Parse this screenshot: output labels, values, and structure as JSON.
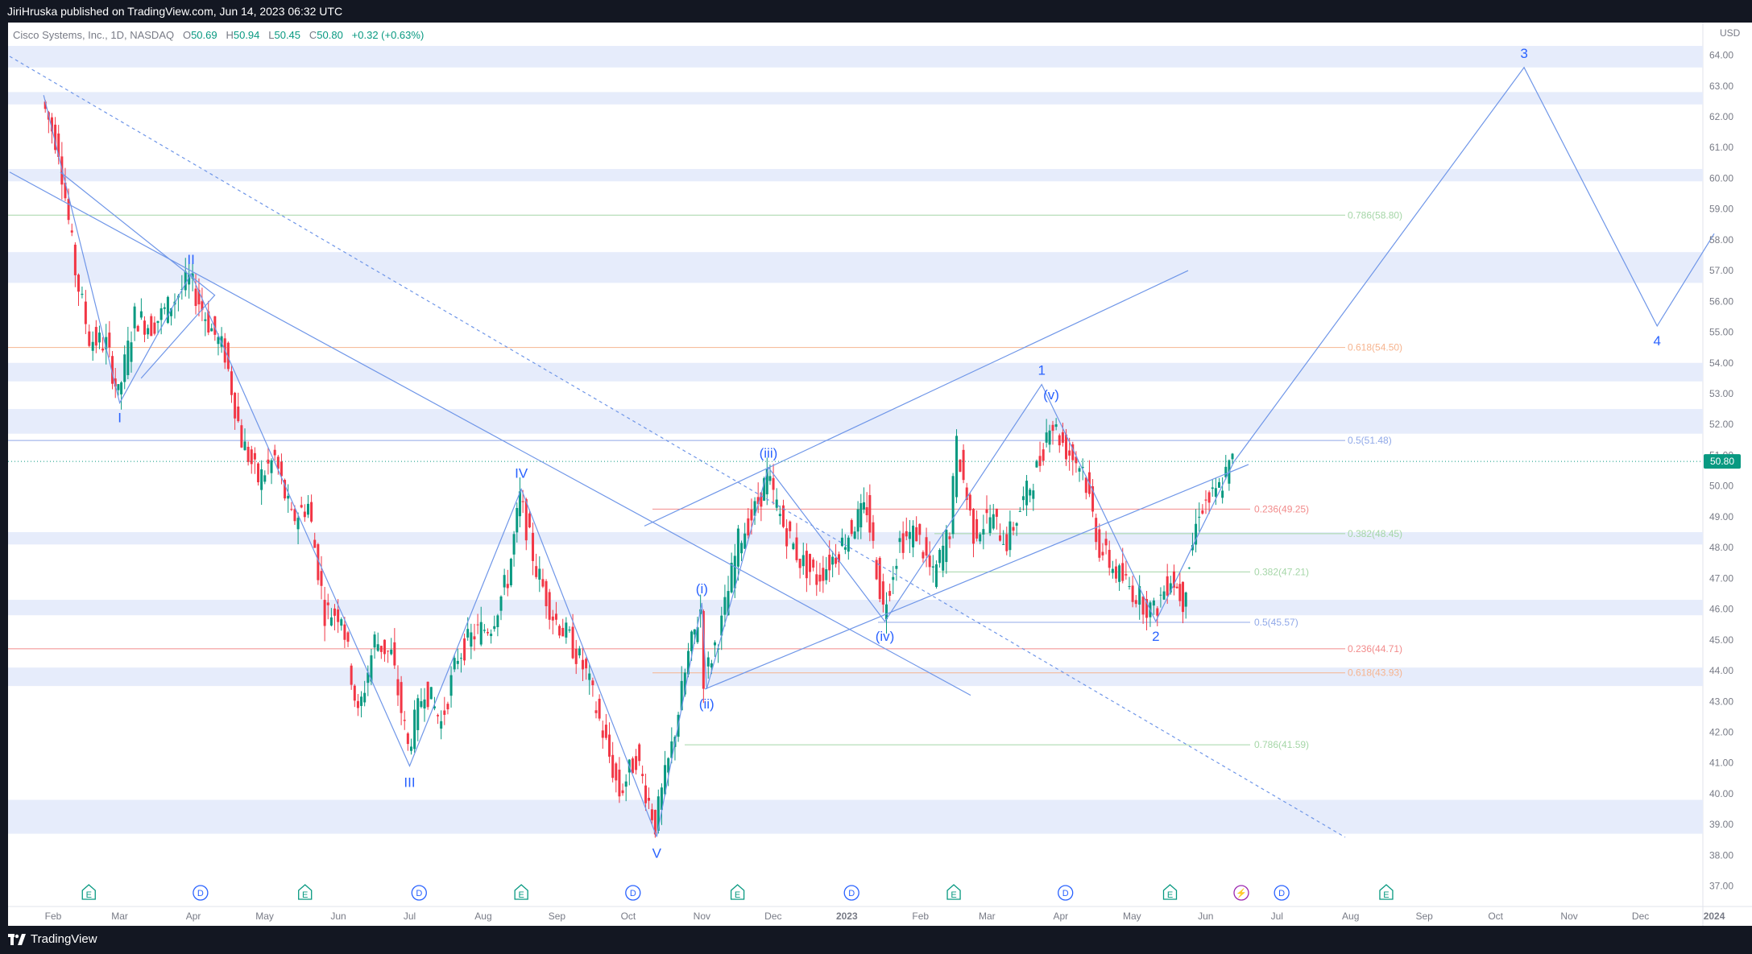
{
  "header": {
    "publisher_text": "JiriHruska published on TradingView.com, Jun 14, 2023 06:32 UTC"
  },
  "legend": {
    "symbol": "Cisco Systems, Inc., 1D, NASDAQ",
    "o_label": "O",
    "o_value": "50.69",
    "h_label": "H",
    "h_value": "50.94",
    "l_label": "L",
    "l_value": "50.45",
    "c_label": "C",
    "c_value": "50.80",
    "change": "+0.32 (+0.63%)"
  },
  "footer": {
    "brand": "TradingView"
  },
  "colors": {
    "background": "#ffffff",
    "up": "#089981",
    "down": "#f23645",
    "wave_line": "#6f96e8",
    "zone": "#e6ecfb",
    "last_price_badge": "#089981"
  },
  "chart_data": {
    "type": "candlestick",
    "title": "Cisco Systems, Inc., 1D, NASDAQ",
    "currency_label": "USD",
    "ylim": [
      36.5,
      65.0
    ],
    "y_ticks": [
      "64.00",
      "63.00",
      "62.00",
      "61.00",
      "60.00",
      "59.00",
      "58.00",
      "57.00",
      "56.00",
      "55.00",
      "54.00",
      "53.00",
      "52.00",
      "51.00",
      "50.00",
      "49.00",
      "48.00",
      "47.00",
      "46.00",
      "45.00",
      "44.00",
      "43.00",
      "42.00",
      "41.00",
      "40.00",
      "39.00",
      "38.00",
      "37.00"
    ],
    "x_ticks": [
      "Feb",
      "Mar",
      "Apr",
      "May",
      "Jun",
      "Jul",
      "Aug",
      "Sep",
      "Oct",
      "Nov",
      "Dec",
      "2023",
      "Feb",
      "Mar",
      "Apr",
      "May",
      "Jun",
      "Jul",
      "Aug",
      "Sep",
      "Oct",
      "Nov",
      "Dec",
      "2024"
    ],
    "last_price": "50.80",
    "wave_points": [
      {
        "label": "I",
        "date": "2022-03-01",
        "value": 52.7
      },
      {
        "label": "II",
        "date": "2022-03-31",
        "value": 56.9
      },
      {
        "label": "III",
        "date": "2022-07-01",
        "value": 40.9
      },
      {
        "label": "IV",
        "date": "2022-08-17",
        "value": 49.9
      },
      {
        "label": "V",
        "date": "2022-10-13",
        "value": 38.6
      },
      {
        "label": "(i)",
        "date": "2022-11-01",
        "value": 46.2
      },
      {
        "label": "(ii)",
        "date": "2022-11-03",
        "value": 43.4
      },
      {
        "label": "(iii)",
        "date": "2022-11-29",
        "value": 50.6
      },
      {
        "label": "(iv)",
        "date": "2023-01-17",
        "value": 45.6
      },
      {
        "label": "(v)",
        "date": "2023-03-28",
        "value": 52.5
      },
      {
        "label": "1",
        "date": "2023-03-24",
        "value": 53.3
      },
      {
        "label": "2",
        "date": "2023-05-11",
        "value": 45.6
      },
      {
        "label": "3",
        "date": "2023-10-13",
        "value": 63.6
      },
      {
        "label": "4",
        "date": "2023-12-08",
        "value": 55.2
      }
    ],
    "fib_levels": [
      {
        "label": "0.786(58.80)",
        "value": 58.8,
        "color": "#a5d6a7"
      },
      {
        "label": "0.618(54.50)",
        "value": 54.5,
        "color": "#f6b48f"
      },
      {
        "label": "0.5(51.48)",
        "value": 51.48,
        "color": "#90a8e8"
      },
      {
        "label": "0.236(49.25)",
        "value": 49.25,
        "color": "#f28b8b"
      },
      {
        "label": "0.382(48.45)",
        "value": 48.45,
        "color": "#a5d6a7"
      },
      {
        "label": "0.382(47.21)",
        "value": 47.21,
        "color": "#a5d6a7"
      },
      {
        "label": "0.5(45.57)",
        "value": 45.57,
        "color": "#90a8e8"
      },
      {
        "label": "0.236(44.71)",
        "value": 44.71,
        "color": "#f28b8b"
      },
      {
        "label": "0.618(43.93)",
        "value": 43.93,
        "color": "#f6b48f"
      },
      {
        "label": "0.786(41.59)",
        "value": 41.59,
        "color": "#a5d6a7"
      }
    ],
    "zones": [
      {
        "from": 63.6,
        "to": 64.3
      },
      {
        "from": 62.4,
        "to": 62.8
      },
      {
        "from": 59.9,
        "to": 60.3
      },
      {
        "from": 56.6,
        "to": 57.6
      },
      {
        "from": 53.4,
        "to": 54.0
      },
      {
        "from": 51.7,
        "to": 52.5
      },
      {
        "from": 48.1,
        "to": 48.5
      },
      {
        "from": 45.8,
        "to": 46.3
      },
      {
        "from": 43.5,
        "to": 44.1
      },
      {
        "from": 38.7,
        "to": 39.8
      }
    ],
    "events": [
      {
        "type": "E",
        "date": "2022-02-16"
      },
      {
        "type": "D",
        "date": "2022-04-04"
      },
      {
        "type": "E",
        "date": "2022-05-18"
      },
      {
        "type": "D",
        "date": "2022-07-05"
      },
      {
        "type": "E",
        "date": "2022-08-17"
      },
      {
        "type": "D",
        "date": "2022-10-03"
      },
      {
        "type": "E",
        "date": "2022-11-16"
      },
      {
        "type": "D",
        "date": "2023-01-03"
      },
      {
        "type": "E",
        "date": "2023-02-15"
      },
      {
        "type": "D",
        "date": "2023-04-03"
      },
      {
        "type": "E",
        "date": "2023-05-17"
      },
      {
        "type": "S",
        "date": "2023-06-16"
      },
      {
        "type": "D",
        "date": "2023-07-03"
      },
      {
        "type": "E",
        "date": "2023-08-16"
      }
    ]
  }
}
